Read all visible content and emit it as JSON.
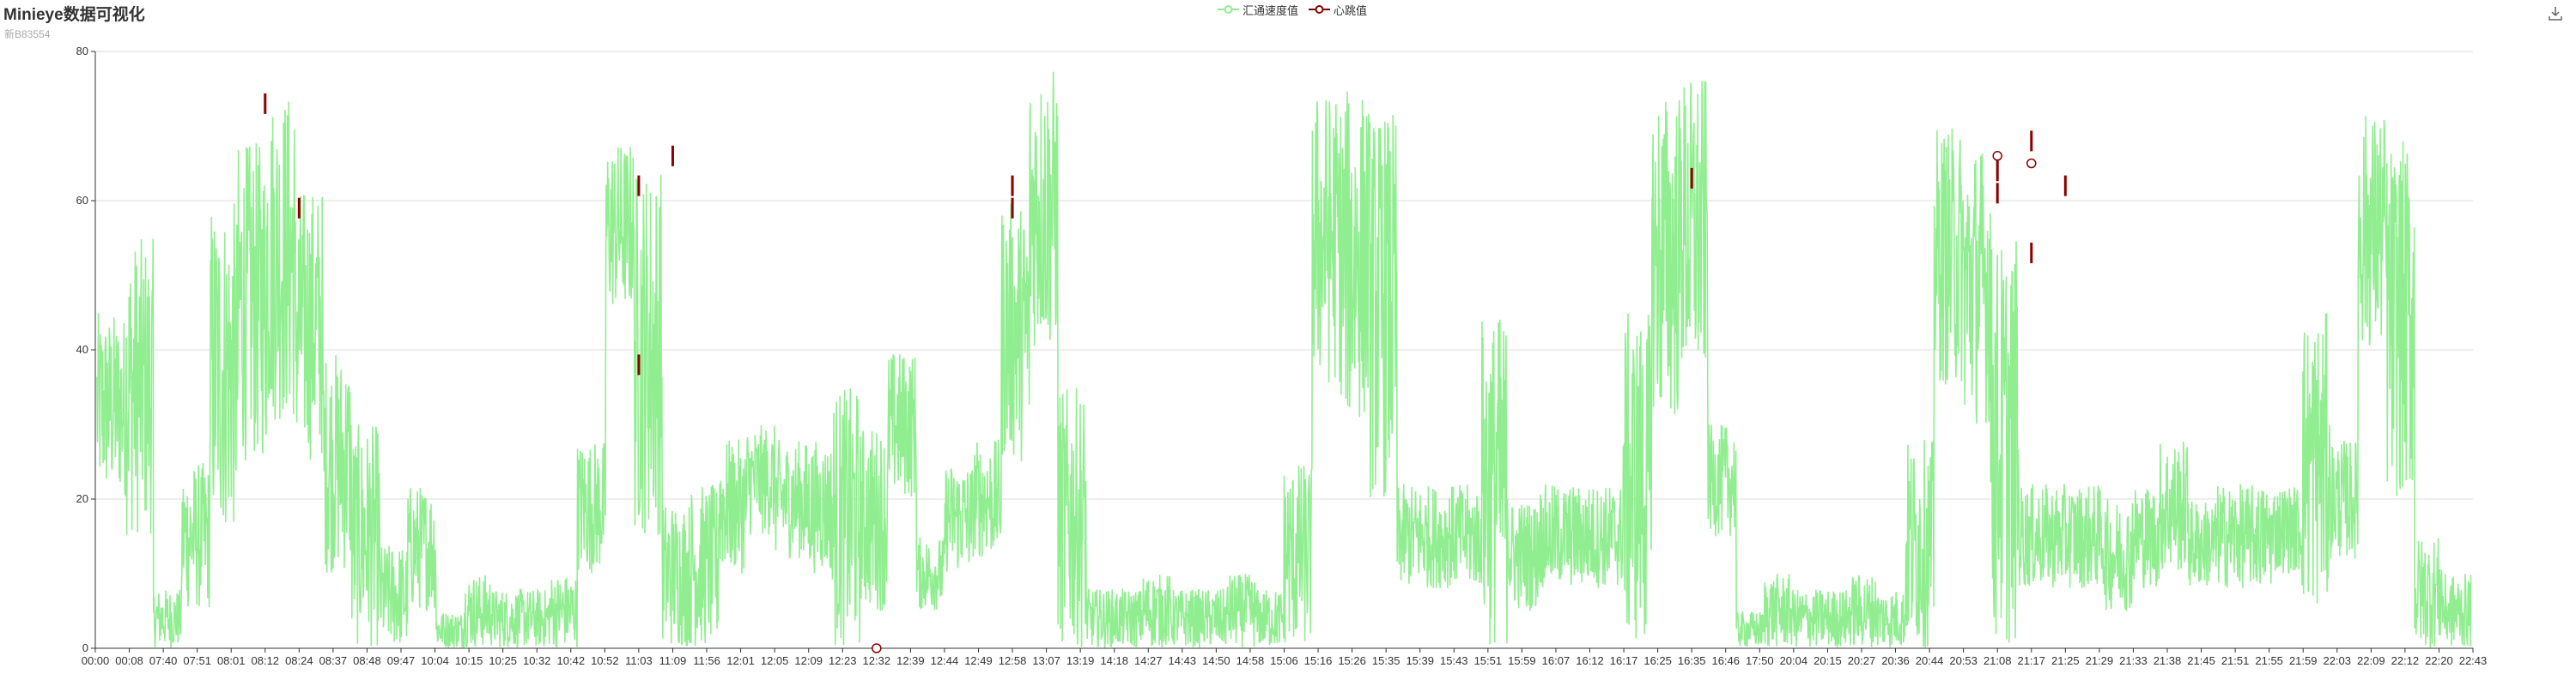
{
  "title": "Minieye数据可视化",
  "subtitle": "新B83554",
  "legend": [
    {
      "name": "汇通速度值",
      "color": "#90ee90"
    },
    {
      "name": "心跳值",
      "color": "#8b0000"
    }
  ],
  "toolbar": {
    "download_icon": "download-icon"
  },
  "chart_data": {
    "type": "line",
    "title": "Minieye数据可视化",
    "subtitle": "新B83554",
    "xlabel": "",
    "ylabel": "",
    "ylim": [
      0,
      80
    ],
    "y_ticks": [
      0,
      20,
      40,
      60,
      80
    ],
    "grid": true,
    "legend_position": "top-center",
    "x_tick_labels": [
      "00:00",
      "00:08",
      "07:40",
      "07:51",
      "08:01",
      "08:12",
      "08:24",
      "08:37",
      "08:48",
      "09:47",
      "10:04",
      "10:15",
      "10:25",
      "10:32",
      "10:42",
      "10:52",
      "11:03",
      "11:09",
      "11:56",
      "12:01",
      "12:05",
      "12:09",
      "12:23",
      "12:32",
      "12:39",
      "12:44",
      "12:49",
      "12:58",
      "13:07",
      "13:19",
      "14:18",
      "14:27",
      "14:43",
      "14:50",
      "14:58",
      "15:06",
      "15:16",
      "15:26",
      "15:35",
      "15:39",
      "15:43",
      "15:51",
      "15:59",
      "16:07",
      "16:12",
      "16:17",
      "16:25",
      "16:35",
      "16:46",
      "17:50",
      "20:04",
      "20:15",
      "20:27",
      "20:36",
      "20:44",
      "20:53",
      "21:08",
      "21:17",
      "21:25",
      "21:29",
      "21:33",
      "21:38",
      "21:45",
      "21:51",
      "21:55",
      "21:59",
      "22:03",
      "22:09",
      "22:12",
      "22:20",
      "22:43"
    ],
    "series": [
      {
        "name": "汇通速度值",
        "color": "#90ee90",
        "segment_peaks": [
          45,
          55,
          8,
          25,
          60,
          68,
          75,
          62,
          40,
          30,
          14,
          22,
          5,
          10,
          8,
          8,
          10,
          28,
          68,
          65,
          20,
          22,
          28,
          30,
          28,
          28,
          35,
          30,
          40,
          15,
          25,
          28,
          60,
          78,
          35,
          8,
          8,
          10,
          8,
          8,
          10,
          8,
          25,
          75,
          75,
          72,
          22,
          22,
          22,
          45,
          20,
          22,
          22,
          22,
          45,
          75,
          77,
          30,
          5,
          10,
          8,
          8,
          10,
          8,
          28,
          70,
          68,
          55,
          22,
          22,
          22,
          20,
          22,
          28,
          20,
          22,
          22,
          22,
          45,
          28,
          72,
          68,
          15,
          10
        ],
        "segment_bases": [
          20,
          15,
          0,
          5,
          15,
          25,
          30,
          25,
          10,
          0,
          0,
          5,
          0,
          0,
          0,
          0,
          0,
          10,
          45,
          15,
          0,
          0,
          10,
          15,
          12,
          10,
          0,
          5,
          20,
          5,
          10,
          12,
          25,
          40,
          0,
          0,
          0,
          0,
          0,
          0,
          0,
          0,
          0,
          35,
          30,
          20,
          8,
          8,
          8,
          0,
          5,
          8,
          8,
          8,
          0,
          30,
          35,
          15,
          0,
          0,
          0,
          0,
          0,
          0,
          0,
          35,
          30,
          0,
          8,
          8,
          8,
          5,
          8,
          10,
          8,
          8,
          8,
          10,
          5,
          12,
          40,
          20,
          0,
          0
        ]
      },
      {
        "name": "心跳值",
        "color": "#8b0000",
        "points": [
          {
            "x": "08:12",
            "y": 73
          },
          {
            "x": "08:24",
            "y": 59
          },
          {
            "x": "11:03",
            "y": 62
          },
          {
            "x": "11:03",
            "y": 38
          },
          {
            "x": "11:09",
            "y": 66
          },
          {
            "x": "12:58",
            "y": 62
          },
          {
            "x": "12:58",
            "y": 59
          },
          {
            "x": "16:35",
            "y": 63
          },
          {
            "x": "21:08",
            "y": 64
          },
          {
            "x": "21:08",
            "y": 61
          },
          {
            "x": "21:17",
            "y": 53
          },
          {
            "x": "21:17",
            "y": 68
          },
          {
            "x": "21:25",
            "y": 62
          }
        ],
        "markers": [
          {
            "x": "12:32",
            "y": 0
          },
          {
            "x": "21:08",
            "y": 66
          },
          {
            "x": "21:17",
            "y": 65
          }
        ]
      }
    ]
  }
}
